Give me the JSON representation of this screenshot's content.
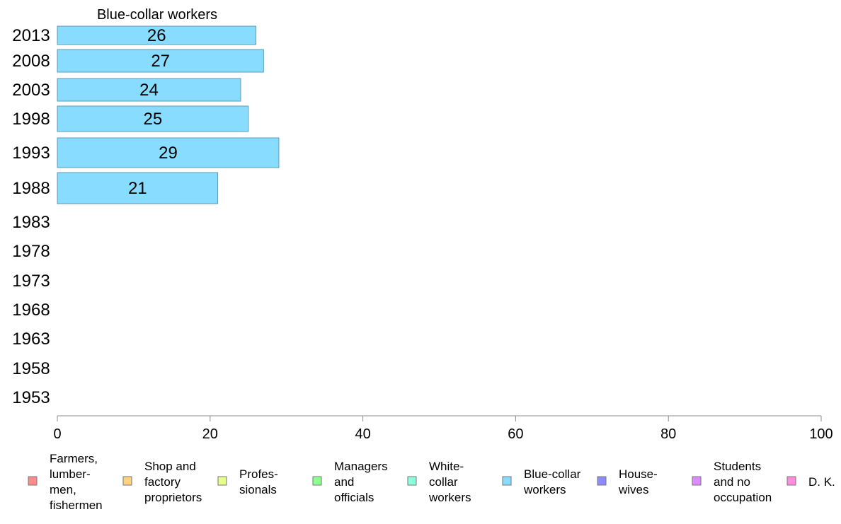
{
  "chart_data": {
    "type": "bar",
    "orientation": "horizontal",
    "title": "Blue-collar workers",
    "xlabel": "",
    "ylabel": "",
    "xlim": [
      0,
      100
    ],
    "x_ticks": [
      "0",
      "20",
      "40",
      "60",
      "80",
      "100"
    ],
    "categories": [
      "2013",
      "2008",
      "2003",
      "1998",
      "1993",
      "1988",
      "1983",
      "1978",
      "1973",
      "1968",
      "1963",
      "1958",
      "1953"
    ],
    "values": [
      26,
      27,
      24,
      25,
      29,
      21,
      null,
      null,
      null,
      null,
      null,
      null,
      null
    ],
    "value_labels": [
      "26",
      "27",
      "24",
      "25",
      "29",
      "21",
      "",
      "",
      "",
      "",
      "",
      "",
      ""
    ],
    "bar_color": "#87dcff",
    "bar_stroke": "#5b9bb5",
    "axis_color": "#8c8c8c",
    "grid": false,
    "legend_position": "bottom",
    "legend": [
      {
        "lines": [
          "Farmers,",
          "lumber-",
          "men,",
          "fishermen"
        ],
        "color": "#ff8c8c"
      },
      {
        "lines": [
          "Shop and",
          "factory",
          "proprietors"
        ],
        "color": "#ffd280"
      },
      {
        "lines": [
          "Profes-",
          "sionals"
        ],
        "color": "#e8ff8c"
      },
      {
        "lines": [
          "Managers",
          "and",
          "officials"
        ],
        "color": "#8cff8c"
      },
      {
        "lines": [
          "White-",
          "collar",
          "workers"
        ],
        "color": "#8cffdc"
      },
      {
        "lines": [
          "Blue-collar",
          "workers"
        ],
        "color": "#87dcff"
      },
      {
        "lines": [
          "House-",
          "wives"
        ],
        "color": "#8c8cff"
      },
      {
        "lines": [
          "Students",
          "and no",
          "occupation"
        ],
        "color": "#dc8cff"
      },
      {
        "lines": [
          "D. K."
        ],
        "color": "#ff8cdc"
      }
    ]
  }
}
